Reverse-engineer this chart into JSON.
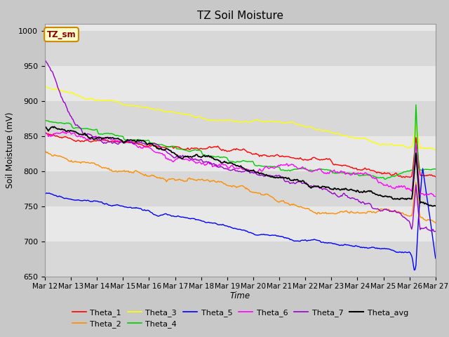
{
  "title": "TZ Soil Moisture",
  "ylabel": "Soil Moisture (mV)",
  "xlabel": "Time",
  "ylim": [
    650,
    1010
  ],
  "yticks": [
    650,
    700,
    750,
    800,
    850,
    900,
    950,
    1000
  ],
  "xtick_labels": [
    "Mar 12",
    "Mar 13",
    "Mar 14",
    "Mar 15",
    "Mar 16",
    "Mar 17",
    "Mar 18",
    "Mar 19",
    "Mar 20",
    "Mar 21",
    "Mar 22",
    "Mar 23",
    "Mar 24",
    "Mar 25",
    "Mar 26",
    "Mar 27"
  ],
  "legend_label": "TZ_sm",
  "band_colors": [
    "#d8d8d8",
    "#e8e8e8"
  ],
  "band_edges": [
    650,
    700,
    750,
    800,
    850,
    900,
    950,
    1000,
    1010
  ],
  "series_colors": {
    "Theta_1": "#ff0000",
    "Theta_2": "#ff8c00",
    "Theta_3": "#ffff00",
    "Theta_4": "#00cc00",
    "Theta_5": "#0000ff",
    "Theta_6": "#ff00ff",
    "Theta_7": "#9900cc",
    "Theta_avg": "#000000"
  },
  "fig_facecolor": "#c8c8c8",
  "axes_facecolor": "#e8e8e8"
}
